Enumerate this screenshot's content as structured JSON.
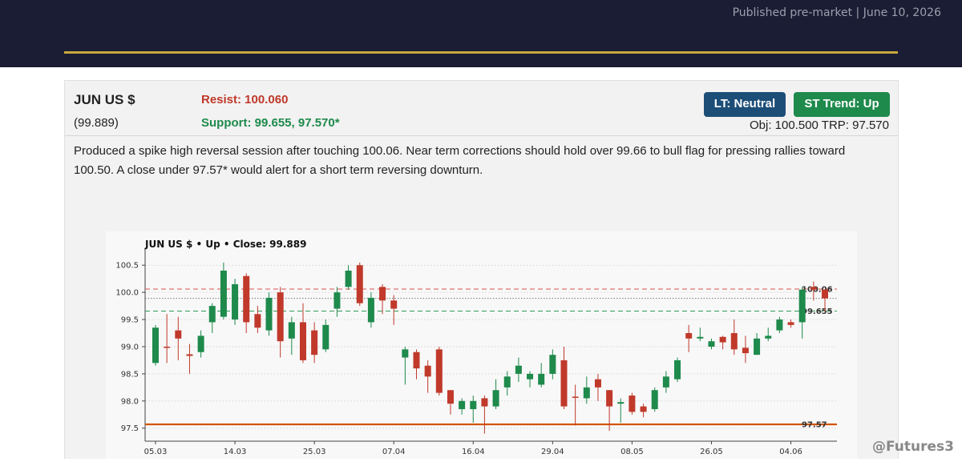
{
  "header": {
    "published": "Published pre-market  |  June 10, 2026"
  },
  "card": {
    "contract": "JUN US $",
    "price": "(99.889)",
    "resist": "Resist: 100.060",
    "support": "Support: 99.655, 97.570*",
    "lt": "LT: Neutral",
    "st": "ST Trend: Up",
    "targets": "Obj: 100.500   TRP: 97.570",
    "commentary": "Produced a spike high reversal session after touching 100.06. Near term corrections should hold over 99.66 to bull flag for pressing rallies toward 100.50. A close under 97.57* would alert for a short term reversing downturn."
  },
  "watermark": "@Futures3",
  "chart_data": {
    "type": "candlestick",
    "title": "JUN US $  •  Up  •  Close: 99.889",
    "categories": [
      "05.03",
      null,
      null,
      null,
      null,
      null,
      null,
      "14.03",
      null,
      null,
      null,
      null,
      null,
      null,
      "25.03",
      null,
      null,
      null,
      null,
      null,
      null,
      "07.04",
      null,
      null,
      null,
      null,
      null,
      null,
      "16.04",
      null,
      null,
      null,
      null,
      null,
      null,
      "29.04",
      null,
      null,
      null,
      null,
      null,
      null,
      "08.05",
      null,
      null,
      null,
      null,
      null,
      null,
      "26.05",
      null,
      null,
      null,
      null,
      null,
      null,
      "04.06",
      null,
      null,
      null
    ],
    "open": [
      98.7,
      99.0,
      99.3,
      98.86,
      98.9,
      99.45,
      99.55,
      99.5,
      100.3,
      99.6,
      99.3,
      100.0,
      99.15,
      99.45,
      99.3,
      98.95,
      99.7,
      100.1,
      100.5,
      99.45,
      100.1,
      99.85,
      98.8,
      98.9,
      98.65,
      98.95,
      98.2,
      97.85,
      97.85,
      98.05,
      97.9,
      98.25,
      98.5,
      98.4,
      98.3,
      98.5,
      98.75,
      98.08,
      98.05,
      98.4,
      98.2,
      97.95,
      98.1,
      97.9,
      97.85,
      98.25,
      98.4,
      99.25,
      99.15,
      99.0,
      99.18,
      99.25,
      98.98,
      98.85,
      99.15,
      99.3,
      99.45,
      99.45,
      100.1,
      100.05
    ],
    "high": [
      99.4,
      99.6,
      99.55,
      99.05,
      99.3,
      99.8,
      100.55,
      100.25,
      100.35,
      99.75,
      100.0,
      100.1,
      99.55,
      99.8,
      99.45,
      99.5,
      100.1,
      100.5,
      100.55,
      100.0,
      100.15,
      99.95,
      99.0,
      98.95,
      98.75,
      99.0,
      98.2,
      98.05,
      98.1,
      98.1,
      98.4,
      98.55,
      98.8,
      98.55,
      98.7,
      98.95,
      99.0,
      98.3,
      98.45,
      98.5,
      98.2,
      98.05,
      98.15,
      97.95,
      98.25,
      98.55,
      98.8,
      99.4,
      99.35,
      99.15,
      99.2,
      99.5,
      99.2,
      99.25,
      99.35,
      99.55,
      99.5,
      100.1,
      100.2,
      100.06
    ],
    "low": [
      98.65,
      98.7,
      98.75,
      98.5,
      98.8,
      99.25,
      99.5,
      99.4,
      99.25,
      99.25,
      99.2,
      98.8,
      98.85,
      98.7,
      98.7,
      98.9,
      99.55,
      100.05,
      99.75,
      99.35,
      99.6,
      99.4,
      98.3,
      98.4,
      98.15,
      98.1,
      97.75,
      97.75,
      97.6,
      97.4,
      97.85,
      98.1,
      98.35,
      98.25,
      98.25,
      98.4,
      97.85,
      97.55,
      97.95,
      98.0,
      97.45,
      97.6,
      97.75,
      97.7,
      97.8,
      98.15,
      98.35,
      98.9,
      99.1,
      98.95,
      98.95,
      98.85,
      98.7,
      98.85,
      99.1,
      99.25,
      99.35,
      99.15,
      99.85,
      99.65
    ],
    "close": [
      99.35,
      98.98,
      99.15,
      98.83,
      99.2,
      99.75,
      100.4,
      100.15,
      99.45,
      99.35,
      99.9,
      99.1,
      99.45,
      98.75,
      98.85,
      99.4,
      100.0,
      100.4,
      99.8,
      99.9,
      99.85,
      99.7,
      98.95,
      98.6,
      98.45,
      98.15,
      97.95,
      98.0,
      98.0,
      97.9,
      98.2,
      98.45,
      98.65,
      98.5,
      98.5,
      98.85,
      97.9,
      98.06,
      98.25,
      98.25,
      97.9,
      97.98,
      97.8,
      97.8,
      98.2,
      98.45,
      98.75,
      99.15,
      99.18,
      99.1,
      99.08,
      98.95,
      98.88,
      99.15,
      99.2,
      99.5,
      99.4,
      100.05,
      100.05,
      99.889
    ],
    "up_color": "#1e8a4c",
    "down_color": "#c0392b",
    "levels": [
      {
        "value": 100.06,
        "label": "100.06",
        "color": "#d9534f",
        "style": "dashed"
      },
      {
        "value": 99.655,
        "label": "99.655",
        "color": "#2e9a55",
        "style": "dashed"
      },
      {
        "value": 99.889,
        "color": "#777777",
        "style": "dotted"
      },
      {
        "value": 97.57,
        "label": "97.57",
        "color": "#d35400",
        "style": "solid"
      }
    ],
    "ylim": [
      97.26,
      100.68
    ],
    "yticks": [
      97.5,
      {
        "value": 98,
        "label": "98.0"
      },
      98.5,
      {
        "value": 99,
        "label": "99.0"
      },
      99.5,
      {
        "value": 100,
        "label": "100.0"
      },
      100.5
    ],
    "grid": true
  }
}
